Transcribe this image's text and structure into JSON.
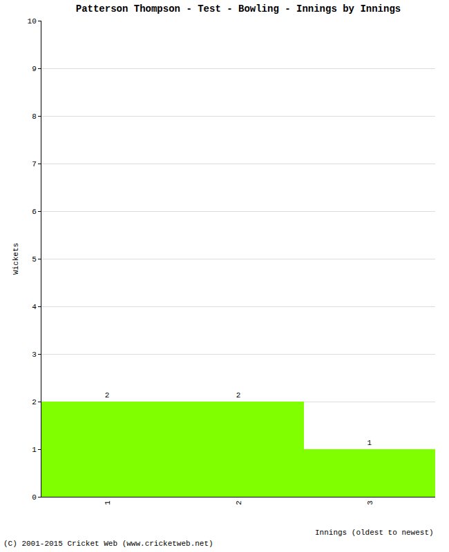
{
  "chart_data": {
    "type": "bar",
    "title": "Patterson Thompson - Test - Bowling - Innings by Innings",
    "x_label": "Innings (oldest to newest)",
    "y_label": "Wickets",
    "footer": "(C) 2001-2015 Cricket Web (www.cricketweb.net)",
    "categories": [
      "1",
      "2",
      "3"
    ],
    "values": [
      2,
      2,
      1
    ],
    "color": "#80ff00",
    "ylim": [
      0,
      10
    ],
    "yticks": [
      0,
      1,
      2,
      3,
      4,
      5,
      6,
      7,
      8,
      9,
      10
    ],
    "grid": true,
    "data_labels": true
  }
}
